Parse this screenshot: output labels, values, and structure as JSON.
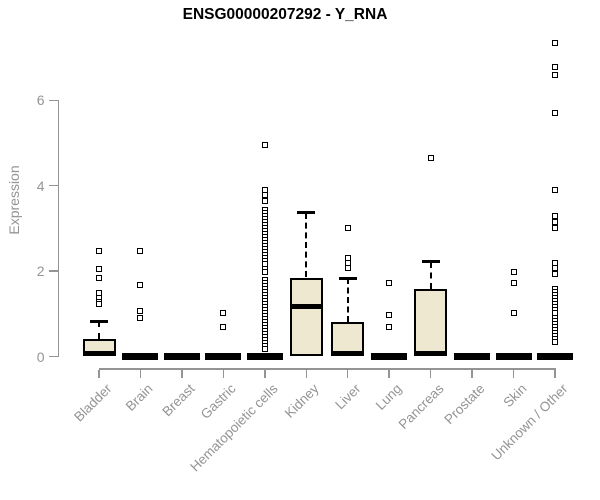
{
  "chart_data": {
    "type": "boxplot",
    "title": "ENSG00000207292 - Y_RNA",
    "ylabel": "Expression",
    "xlabel": "",
    "ylim": [
      0,
      7.6
    ],
    "yticks": [
      0,
      2,
      4,
      6
    ],
    "grid": false,
    "legend": false,
    "box_fill_color": "#EDE8CF",
    "box_line_color": "#000000",
    "axis_color": "#949494",
    "categories": [
      "Bladder",
      "Brain",
      "Breast",
      "Gastric",
      "Hematopoietic cells",
      "Kidney",
      "Liver",
      "Lung",
      "Pancreas",
      "Prostate",
      "Skin",
      "Unknown / Other"
    ],
    "boxes": [
      {
        "category": "Bladder",
        "q1": 0,
        "median": 0.07,
        "q3": 0.42,
        "whisker_low": 0,
        "whisker_high": 0.82,
        "outliers": [
          2.48,
          2.06,
          1.85,
          1.48,
          1.36,
          1.28,
          1.22
        ]
      },
      {
        "category": "Brain",
        "q1": 0,
        "median": 0,
        "q3": 0,
        "whisker_low": 0,
        "whisker_high": 0,
        "outliers": [
          2.46,
          1.67,
          1.07,
          0.9
        ]
      },
      {
        "category": "Breast",
        "q1": 0,
        "median": 0,
        "q3": 0,
        "whisker_low": 0,
        "whisker_high": 0,
        "outliers": []
      },
      {
        "category": "Gastric",
        "q1": 0,
        "median": 0,
        "q3": 0,
        "whisker_low": 0,
        "whisker_high": 0,
        "outliers": [
          1.03,
          0.68
        ]
      },
      {
        "category": "Hematopoietic cells",
        "q1": 0,
        "median": 0,
        "q3": 0,
        "whisker_low": 0,
        "whisker_high": 0,
        "outliers": [
          4.96,
          3.91,
          3.79,
          3.65,
          3.42,
          3.35,
          3.28,
          3.21,
          3.14,
          3.07,
          3.0,
          2.93,
          2.86,
          2.79,
          2.72,
          2.65,
          2.58,
          2.51,
          2.44,
          2.37,
          2.3,
          2.23,
          2.16,
          2.05,
          1.98,
          1.78,
          1.71,
          1.64,
          1.57,
          1.5,
          1.43,
          1.36,
          1.29,
          1.22,
          1.15,
          1.08,
          1.01,
          0.94,
          0.87,
          0.8,
          0.73,
          0.66,
          0.59,
          0.52,
          0.45,
          0.38,
          0.31,
          0.24,
          0.17
        ]
      },
      {
        "category": "Kidney",
        "q1": 0,
        "median": 1.17,
        "q3": 1.85,
        "whisker_low": 0,
        "whisker_high": 3.37,
        "outliers": []
      },
      {
        "category": "Liver",
        "q1": 0,
        "median": 0.07,
        "q3": 0.8,
        "whisker_low": 0,
        "whisker_high": 1.83,
        "outliers": [
          3.02,
          2.3,
          2.2,
          2.08
        ]
      },
      {
        "category": "Lung",
        "q1": 0,
        "median": 0,
        "q3": 0,
        "whisker_low": 0,
        "whisker_high": 0,
        "outliers": [
          1.71,
          0.98,
          0.68
        ]
      },
      {
        "category": "Pancreas",
        "q1": 0,
        "median": 0.07,
        "q3": 1.57,
        "whisker_low": 0,
        "whisker_high": 2.22,
        "outliers": [
          4.64
        ]
      },
      {
        "category": "Prostate",
        "q1": 0,
        "median": 0,
        "q3": 0,
        "whisker_low": 0,
        "whisker_high": 0,
        "outliers": []
      },
      {
        "category": "Skin",
        "q1": 0,
        "median": 0,
        "q3": 0,
        "whisker_low": 0,
        "whisker_high": 0,
        "outliers": [
          1.98,
          1.72,
          1.02
        ]
      },
      {
        "category": "Unknown / Other",
        "q1": 0,
        "median": 0,
        "q3": 0,
        "whisker_low": 0,
        "whisker_high": 0,
        "outliers": [
          7.35,
          6.77,
          6.6,
          5.71,
          3.89,
          3.28,
          3.14,
          3.02,
          2.2,
          2.08,
          1.94,
          1.59,
          1.52,
          1.45,
          1.38,
          1.31,
          1.24,
          1.17,
          1.1,
          1.03,
          0.89,
          0.82,
          0.75,
          0.68,
          0.61,
          0.54,
          0.47,
          0.4,
          0.33
        ]
      }
    ]
  }
}
